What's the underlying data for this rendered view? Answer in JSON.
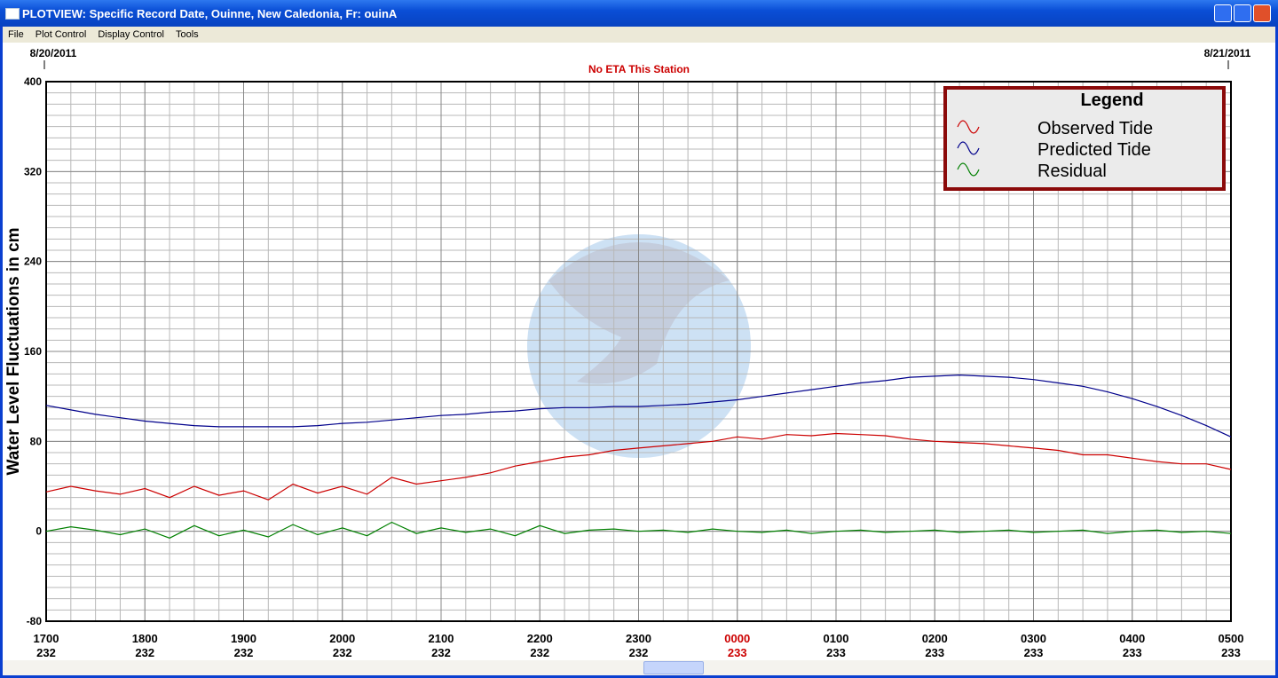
{
  "window": {
    "title": "PLOTVIEW: Specific Record Date, Ouinne, New Caledonia, Fr: ouinA",
    "menu": [
      "File",
      "Plot Control",
      "Display Control",
      "Tools"
    ]
  },
  "chart_data": {
    "type": "line",
    "top_dates": [
      "8/20/2011",
      "8/21/2011"
    ],
    "station_note": "No ETA This Station",
    "ylabel": "Water Level Fluctuations in cm",
    "xlim": [
      17,
      29
    ],
    "xticks": [
      {
        "value": 17,
        "label": "1700"
      },
      {
        "value": 18,
        "label": "1800"
      },
      {
        "value": 19,
        "label": "1900"
      },
      {
        "value": 20,
        "label": "2000"
      },
      {
        "value": 21,
        "label": "2100"
      },
      {
        "value": 22,
        "label": "2200"
      },
      {
        "value": 23,
        "label": "2300"
      },
      {
        "value": 24,
        "label": "0000",
        "color": "#cc0000"
      },
      {
        "value": 25,
        "label": "0100"
      },
      {
        "value": 26,
        "label": "0200"
      },
      {
        "value": 27,
        "label": "0300"
      },
      {
        "value": 28,
        "label": "0400"
      },
      {
        "value": 29,
        "label": "0500"
      }
    ],
    "x_day_labels": [
      "232",
      "232",
      "232",
      "232",
      "232",
      "232",
      "232",
      "233",
      "233",
      "233",
      "233",
      "233",
      "233"
    ],
    "ylim": [
      -80,
      400
    ],
    "yticks": [
      -80,
      0,
      80,
      160,
      240,
      320,
      400
    ],
    "grid": true,
    "legend_title": "Legend",
    "legend_position": "upper right",
    "x": [
      17,
      17.25,
      17.5,
      17.75,
      18,
      18.25,
      18.5,
      18.75,
      19,
      19.25,
      19.5,
      19.75,
      20,
      20.25,
      20.5,
      20.75,
      21,
      21.25,
      21.5,
      21.75,
      22,
      22.25,
      22.5,
      22.75,
      23,
      23.25,
      23.5,
      23.75,
      24,
      24.25,
      24.5,
      24.75,
      25,
      25.25,
      25.5,
      25.75,
      26,
      26.25,
      26.5,
      26.75,
      27,
      27.25,
      27.5,
      27.75,
      28,
      28.25,
      28.5,
      28.75,
      29
    ],
    "series": [
      {
        "name": "Observed Tide",
        "color": "#cc0000",
        "values": [
          35,
          40,
          36,
          33,
          38,
          30,
          40,
          32,
          36,
          28,
          42,
          34,
          40,
          33,
          48,
          42,
          45,
          48,
          52,
          58,
          62,
          66,
          68,
          72,
          74,
          76,
          78,
          80,
          84,
          82,
          86,
          85,
          87,
          86,
          85,
          82,
          80,
          79,
          78,
          76,
          74,
          72,
          68,
          68,
          65,
          62,
          60,
          60,
          55
        ]
      },
      {
        "name": "Predicted Tide",
        "color": "#00008b",
        "values": [
          112,
          108,
          104,
          101,
          98,
          96,
          94,
          93,
          93,
          93,
          93,
          94,
          96,
          97,
          99,
          101,
          103,
          104,
          106,
          107,
          109,
          110,
          110,
          111,
          111,
          112,
          113,
          115,
          117,
          120,
          123,
          126,
          129,
          132,
          134,
          137,
          138,
          139,
          138,
          137,
          135,
          132,
          129,
          124,
          118,
          111,
          103,
          94,
          84
        ]
      },
      {
        "name": "Residual",
        "color": "#008000",
        "values": [
          0,
          4,
          1,
          -3,
          2,
          -6,
          5,
          -4,
          1,
          -5,
          6,
          -3,
          3,
          -4,
          8,
          -2,
          3,
          -1,
          2,
          -4,
          5,
          -2,
          1,
          2,
          0,
          1,
          -1,
          2,
          0,
          -1,
          1,
          -2,
          0,
          1,
          -1,
          0,
          1,
          -1,
          0,
          1,
          -1,
          0,
          1,
          -2,
          0,
          1,
          -1,
          0,
          -2
        ]
      }
    ]
  }
}
